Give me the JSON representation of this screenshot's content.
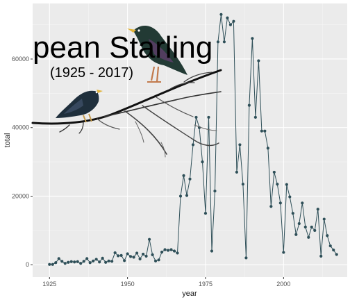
{
  "chart_data": {
    "type": "line",
    "title": "pean Starling",
    "subtitle": "(1925 - 2017)",
    "xlabel": "year",
    "ylabel": "total",
    "xlim": [
      1919.6,
      2020.4
    ],
    "ylim": [
      -3600,
      76200
    ],
    "x_ticks": [
      1925,
      1950,
      1975,
      2000
    ],
    "y_ticks": [
      0,
      20000,
      40000,
      60000
    ],
    "y_tick_labels": [
      "0",
      "20000",
      "40000",
      "60000"
    ],
    "grid": true,
    "colors": {
      "panel": "#ebebeb",
      "grid": "#ffffff",
      "line": "#2e4f58",
      "point": "#2e4f58"
    },
    "series": [
      {
        "x": [
          1925,
          1926,
          1927,
          1928,
          1929,
          1930,
          1931,
          1932,
          1933,
          1934,
          1935,
          1936,
          1937,
          1938,
          1939,
          1940,
          1941,
          1942,
          1943,
          1944,
          1945,
          1946,
          1947,
          1948,
          1949,
          1950,
          1951,
          1952,
          1953,
          1954,
          1955,
          1956,
          1957,
          1958,
          1959,
          1960,
          1961,
          1962,
          1963,
          1964,
          1965,
          1966,
          1967,
          1968,
          1969,
          1970,
          1971,
          1972,
          1973,
          1974,
          1975,
          1976,
          1977,
          1978,
          1979,
          1980,
          1981,
          1982,
          1983,
          1984,
          1985,
          1986,
          1987,
          1988,
          1989,
          1990,
          1991,
          1992,
          1993,
          1994,
          1995,
          1996,
          1997,
          1998,
          1999,
          2000,
          2001,
          2002,
          2003,
          2004,
          2005,
          2006,
          2007,
          2008,
          2009,
          2010,
          2011,
          2012,
          2013,
          2014,
          2015,
          2016,
          2017
        ],
        "y": [
          100,
          100,
          600,
          1800,
          1000,
          400,
          700,
          900,
          800,
          900,
          400,
          1000,
          1800,
          600,
          1100,
          1600,
          800,
          1900,
          700,
          1100,
          1000,
          3500,
          2600,
          2700,
          1200,
          3200,
          2400,
          2200,
          3400,
          1700,
          3100,
          2500,
          7400,
          2900,
          1100,
          1400,
          3700,
          4400,
          4200,
          4400,
          4000,
          3400,
          20000,
          26000,
          20200,
          25000,
          35000,
          43000,
          40000,
          30000,
          15000,
          43000,
          4000,
          21500,
          65000,
          73000,
          65000,
          72000,
          70000,
          71000,
          27000,
          35000,
          23500,
          2000,
          46500,
          66000,
          43000,
          59500,
          39000,
          39000,
          34000,
          17000,
          27000,
          23500,
          18000,
          3600,
          23400,
          19800,
          15000,
          8800,
          12000,
          18000,
          11000,
          8000,
          11000,
          10000,
          16200,
          2500,
          13300,
          8500,
          5500,
          4300,
          3000
        ]
      }
    ]
  }
}
